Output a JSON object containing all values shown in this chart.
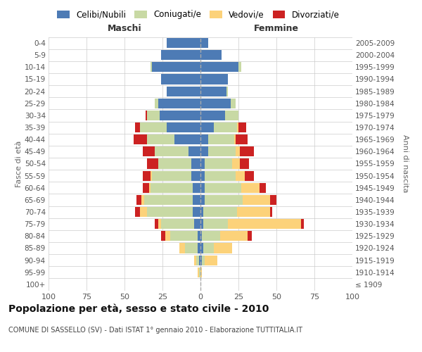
{
  "age_groups": [
    "100+",
    "95-99",
    "90-94",
    "85-89",
    "80-84",
    "75-79",
    "70-74",
    "65-69",
    "60-64",
    "55-59",
    "50-54",
    "45-49",
    "40-44",
    "35-39",
    "30-34",
    "25-29",
    "20-24",
    "15-19",
    "10-14",
    "5-9",
    "0-4"
  ],
  "birth_years": [
    "≤ 1909",
    "1910-1914",
    "1915-1919",
    "1920-1924",
    "1925-1929",
    "1930-1934",
    "1935-1939",
    "1940-1944",
    "1945-1949",
    "1950-1954",
    "1955-1959",
    "1960-1964",
    "1965-1969",
    "1970-1974",
    "1975-1979",
    "1980-1984",
    "1985-1989",
    "1990-1994",
    "1995-1999",
    "2000-2004",
    "2005-2009"
  ],
  "males": {
    "celibi": [
      0,
      0,
      1,
      2,
      2,
      4,
      5,
      5,
      5,
      6,
      6,
      8,
      17,
      22,
      27,
      28,
      22,
      26,
      32,
      26,
      22
    ],
    "coniugati": [
      0,
      1,
      2,
      8,
      18,
      22,
      30,
      32,
      28,
      26,
      22,
      22,
      18,
      18,
      8,
      2,
      0,
      0,
      1,
      0,
      0
    ],
    "vedovi": [
      0,
      1,
      1,
      4,
      3,
      2,
      5,
      2,
      1,
      1,
      0,
      0,
      0,
      0,
      0,
      0,
      0,
      0,
      0,
      0,
      0
    ],
    "divorziati": [
      0,
      0,
      0,
      0,
      3,
      2,
      3,
      3,
      4,
      5,
      7,
      8,
      9,
      3,
      1,
      0,
      0,
      0,
      0,
      0,
      0
    ]
  },
  "females": {
    "nubili": [
      0,
      0,
      1,
      2,
      1,
      2,
      2,
      3,
      3,
      3,
      3,
      5,
      5,
      9,
      16,
      20,
      17,
      18,
      25,
      14,
      5
    ],
    "coniugate": [
      0,
      0,
      2,
      7,
      12,
      16,
      22,
      25,
      24,
      20,
      18,
      18,
      17,
      15,
      9,
      3,
      1,
      0,
      2,
      0,
      0
    ],
    "vedove": [
      0,
      1,
      8,
      12,
      18,
      48,
      22,
      18,
      12,
      6,
      5,
      3,
      1,
      1,
      0,
      0,
      0,
      0,
      0,
      0,
      0
    ],
    "divorziate": [
      0,
      0,
      0,
      0,
      3,
      2,
      1,
      4,
      4,
      6,
      6,
      9,
      8,
      5,
      0,
      0,
      0,
      0,
      0,
      0,
      0
    ]
  },
  "colors": {
    "celibi": "#4d7bb5",
    "coniugati": "#c8d9a4",
    "vedovi": "#fcd27a",
    "divorziati": "#cc2222"
  },
  "title": "Popolazione per età, sesso e stato civile - 2010",
  "subtitle": "COMUNE DI SASSELLO (SV) - Dati ISTAT 1° gennaio 2010 - Elaborazione TUTTITALIA.IT",
  "xlabel_left": "Maschi",
  "xlabel_right": "Femmine",
  "ylabel_left": "Fasce di età",
  "ylabel_right": "Anni di nascita",
  "xlim": 100,
  "background_color": "#ffffff",
  "grid_color": "#cccccc",
  "legend_labels": [
    "Celibi/Nubili",
    "Coniugati/e",
    "Vedovi/e",
    "Divorziati/e"
  ]
}
